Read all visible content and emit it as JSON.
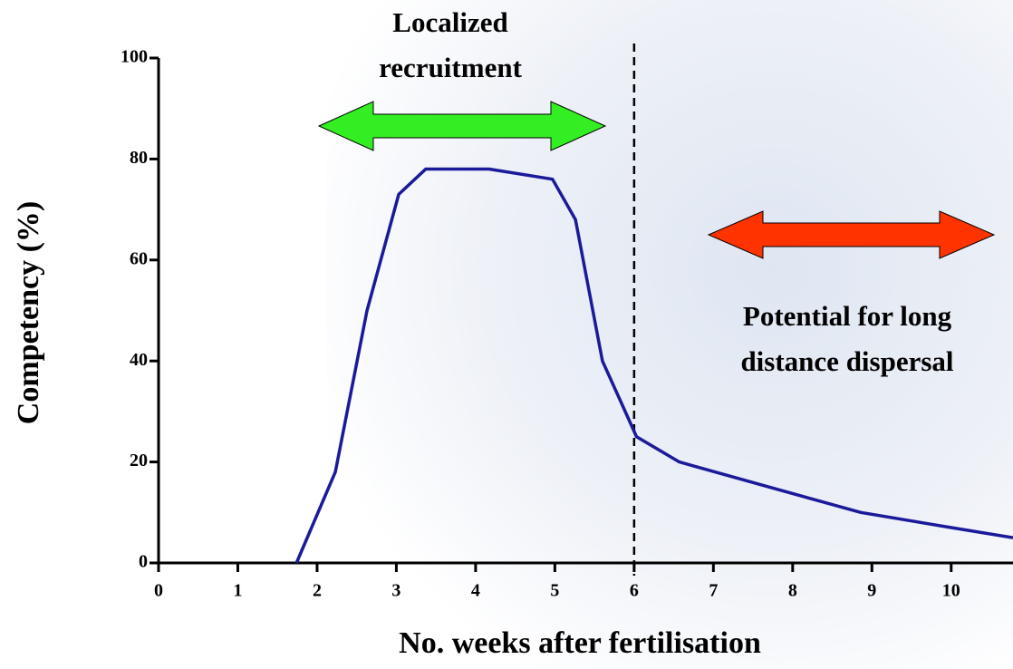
{
  "chart_data": {
    "type": "line",
    "xlabel": "No. weeks after fertilisation",
    "ylabel": "Competency (%)",
    "x": [
      1.74,
      2.23,
      2.63,
      3.03,
      3.37,
      4.17,
      4.97,
      5.26,
      5.43,
      5.6,
      5.83,
      6.03,
      6.57,
      7.71,
      8.86,
      10,
      10.78
    ],
    "series": [
      {
        "color": "#1a1a9a",
        "values": [
          0,
          18,
          50,
          73,
          78,
          78,
          76,
          68,
          54,
          40,
          32,
          25,
          20,
          15,
          10,
          7,
          5
        ]
      }
    ],
    "xlim": [
      0,
      10.78
    ],
    "xticks": [
      0,
      1,
      2,
      3,
      4,
      5,
      6,
      7,
      8,
      9,
      10
    ],
    "ylim": [
      0,
      100
    ],
    "yticks": [
      0,
      20,
      40,
      60,
      80,
      100
    ],
    "vline": 6,
    "annotations": [
      "Localized",
      "recruitment",
      "Potential for long",
      "distance dispersal"
    ]
  }
}
